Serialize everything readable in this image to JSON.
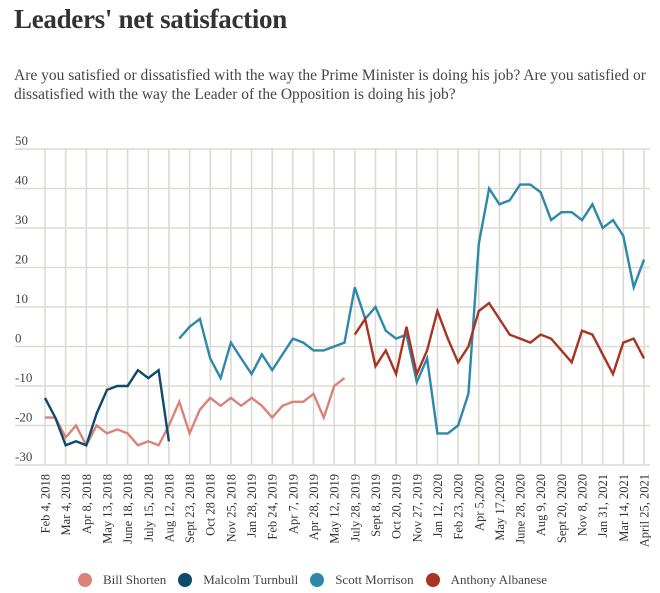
{
  "header": {
    "title": "Leaders' net satisfaction",
    "subtitle": "Are you satisfied or dissatisfied with the way the Prime Minister is doing his job? Are you satisfied or dissatisfied with the way the Leader of the Opposition is doing his job?"
  },
  "chart_data": {
    "type": "line",
    "title": "Leaders' net satisfaction",
    "xlabel": "",
    "ylabel": "",
    "ylim": [
      -30,
      50
    ],
    "yticks": [
      50,
      40,
      30,
      20,
      10,
      0,
      -10,
      -20,
      -30
    ],
    "ytick_labels": [
      "50",
      "40",
      "30",
      "20",
      "10",
      "0",
      "-10",
      "-20",
      "-30"
    ],
    "grid": true,
    "legend_position": "bottom",
    "x_label_ticks": [
      "Feb 4, 2018",
      "Mar 4, 2018",
      "Apr 8, 2018",
      "May 13, 2018",
      "June 18, 2018",
      "July 15, 2018",
      "Aug 12, 2018",
      "Sept 23, 2018",
      "Oct 28 2018",
      "Nov 25, 2018",
      "Jan 28, 2019",
      "Feb 24, 2019",
      "Apr 7, 2019",
      "Apr 28, 2019",
      "May 12, 2019",
      "July 28, 2019",
      "Sept 8, 2019",
      "Oct 20, 2019",
      "Nov 27, 2019",
      "Jan 12, 2020",
      "Feb 23, 2020",
      "Apr 5,2020",
      "May 17,2020",
      "June 28, 2020",
      "Aug 9, 2020",
      "Sept 20, 2020",
      "Nov 8, 2020",
      "Jan 31, 2021",
      "Mar 14, 2021",
      "April 25, 2021"
    ],
    "points_per_label_interval": 2,
    "total_poll_points": 59,
    "series": [
      {
        "name": "Bill Shorten",
        "color": "#d9837a",
        "start_index": 0,
        "values": [
          -18,
          -18,
          -23,
          -20,
          -25,
          -20,
          -22,
          -21,
          -22,
          -25,
          -24,
          -25,
          -20,
          -14,
          -22,
          -16,
          -13,
          -15,
          -13,
          -15,
          -13,
          -15,
          -18,
          -15,
          -14,
          -14,
          -12,
          -18,
          -10,
          -8
        ]
      },
      {
        "name": "Malcolm Turnbull",
        "color": "#0d4a6b",
        "start_index": 0,
        "values": [
          -13,
          -18,
          -25,
          -24,
          -25,
          -17,
          -11,
          -10,
          -10,
          -6,
          -8,
          -6,
          -24
        ]
      },
      {
        "name": "Scott Morrison",
        "color": "#2d88aa",
        "start_index": 13,
        "values": [
          2,
          5,
          7,
          -3,
          -8,
          1,
          -3,
          -7,
          -2,
          -6,
          -2,
          2,
          1,
          -1,
          -1,
          0,
          1,
          15,
          7,
          10,
          4,
          2,
          3,
          -9,
          -3,
          -22,
          -22,
          -20,
          -12,
          26,
          40,
          36,
          37,
          41,
          41,
          39,
          32,
          34,
          34,
          32,
          36,
          30,
          32,
          28,
          15,
          22
        ]
      },
      {
        "name": "Anthony Albanese",
        "color": "#a83424",
        "start_index": 30,
        "values": [
          3,
          7,
          -5,
          -1,
          -7,
          5,
          -7,
          -1,
          9,
          2,
          -4,
          0,
          9,
          11,
          7,
          3,
          2,
          1,
          3,
          2,
          -1,
          -4,
          4,
          3,
          -2,
          -7,
          1,
          2,
          -3
        ]
      }
    ]
  },
  "legend": {
    "items": [
      {
        "label": "Bill Shorten",
        "color": "#d9837a"
      },
      {
        "label": "Malcolm Turnbull",
        "color": "#0d4a6b"
      },
      {
        "label": "Scott Morrison",
        "color": "#2d88aa"
      },
      {
        "label": "Anthony Albanese",
        "color": "#a83424"
      }
    ]
  }
}
